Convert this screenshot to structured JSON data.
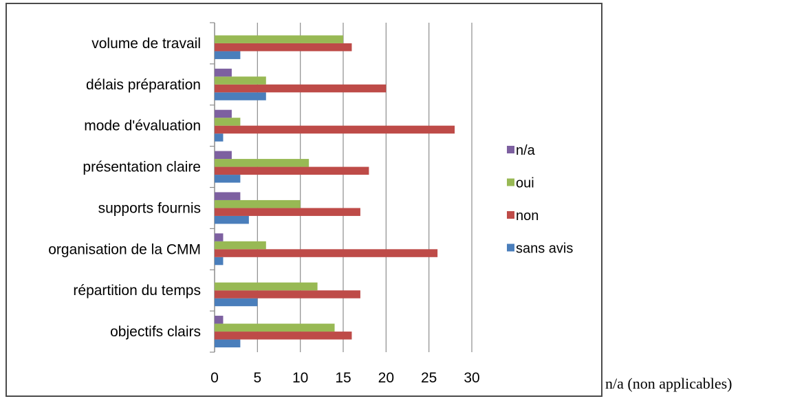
{
  "chart_data": {
    "type": "bar",
    "orientation": "horizontal",
    "categories": [
      "objectifs clairs",
      "répartition du temps",
      "organisation de la CMM",
      "supports fournis",
      "présentation claire",
      "mode d'évaluation",
      "délais  préparation",
      "volume de travail"
    ],
    "series": [
      {
        "name": "sans avis",
        "color": "#4a7ebb",
        "values": [
          3,
          5,
          1,
          4,
          3,
          1,
          6,
          3
        ]
      },
      {
        "name": " non",
        "color": "#be4b48",
        "values": [
          16,
          17,
          26,
          17,
          18,
          28,
          20,
          16
        ]
      },
      {
        "name": "oui",
        "color": "#98b954",
        "values": [
          14,
          12,
          6,
          10,
          11,
          3,
          6,
          15
        ]
      },
      {
        "name": "n/a",
        "color": "#7d60a0",
        "values": [
          1,
          0,
          1,
          3,
          2,
          2,
          2,
          0
        ]
      }
    ],
    "legend_order": [
      "n/a",
      "oui",
      " non",
      "sans avis"
    ],
    "xlim": [
      0,
      30
    ],
    "xticks": [
      "0",
      "5",
      "10",
      "15",
      "20",
      "25",
      "30"
    ],
    "grid": true,
    "legend_position": "right",
    "title": "",
    "xlabel": "",
    "ylabel": ""
  },
  "note": "n/a (non applicables)"
}
